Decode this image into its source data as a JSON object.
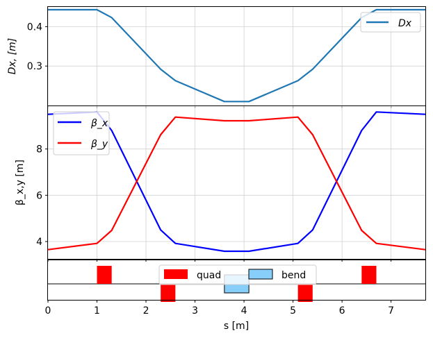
{
  "chart_data": [
    {
      "type": "line",
      "ylabel": "Dx, [m]",
      "xlim": [
        0,
        7.7
      ],
      "ylim": [
        0.2,
        0.45
      ],
      "yticks": [
        "0.3",
        "0.4"
      ],
      "grid": true,
      "legend": "top-right",
      "series": [
        {
          "name": "Dx",
          "color": "#1f77b4",
          "x": [
            0,
            1.0,
            1.3,
            2.3,
            2.6,
            3.6,
            4.1,
            5.1,
            5.4,
            6.4,
            6.7,
            7.7
          ],
          "y": [
            0.443,
            0.443,
            0.423,
            0.292,
            0.263,
            0.21,
            0.21,
            0.263,
            0.292,
            0.423,
            0.443,
            0.443
          ]
        }
      ]
    },
    {
      "type": "line",
      "ylabel": "β_x,y [m]",
      "xlim": [
        0,
        7.7
      ],
      "ylim": [
        3.25,
        9.85
      ],
      "yticks": [
        "4",
        "6",
        "8"
      ],
      "grid": true,
      "legend": "top-left",
      "series": [
        {
          "name": "β_x",
          "color": "#0000ff",
          "x": [
            0,
            1.0,
            1.3,
            2.3,
            2.6,
            3.6,
            4.1,
            5.1,
            5.4,
            6.4,
            6.7,
            7.7
          ],
          "y": [
            9.5,
            9.6,
            8.8,
            4.5,
            3.92,
            3.58,
            3.58,
            3.92,
            4.5,
            8.8,
            9.6,
            9.5
          ]
        },
        {
          "name": "β_y",
          "color": "#ff0000",
          "x": [
            0,
            1.0,
            1.3,
            2.3,
            2.6,
            3.6,
            4.1,
            5.1,
            5.4,
            6.4,
            6.7,
            7.7
          ],
          "y": [
            3.65,
            3.92,
            4.48,
            8.62,
            9.38,
            9.22,
            9.22,
            9.38,
            8.62,
            4.48,
            3.92,
            3.65
          ]
        }
      ]
    },
    {
      "type": "bar",
      "xlabel": "s [m]",
      "xlim": [
        0,
        7.7
      ],
      "xticks": [
        "0",
        "1",
        "2",
        "3",
        "4",
        "5",
        "6",
        "7"
      ],
      "legend": "top-center",
      "legend_entries": [
        {
          "name": "quad",
          "color": "#ff0000"
        },
        {
          "name": "bend",
          "color": "#87cefa"
        }
      ],
      "elements": [
        {
          "type": "quad",
          "start": 1.0,
          "end": 1.3,
          "sign": 1
        },
        {
          "type": "quad",
          "start": 2.3,
          "end": 2.6,
          "sign": -1
        },
        {
          "type": "bend",
          "start": 3.6,
          "end": 4.1,
          "sign": 1
        },
        {
          "type": "quad",
          "start": 5.1,
          "end": 5.4,
          "sign": -1
        },
        {
          "type": "quad",
          "start": 6.4,
          "end": 6.7,
          "sign": 1
        }
      ]
    }
  ]
}
